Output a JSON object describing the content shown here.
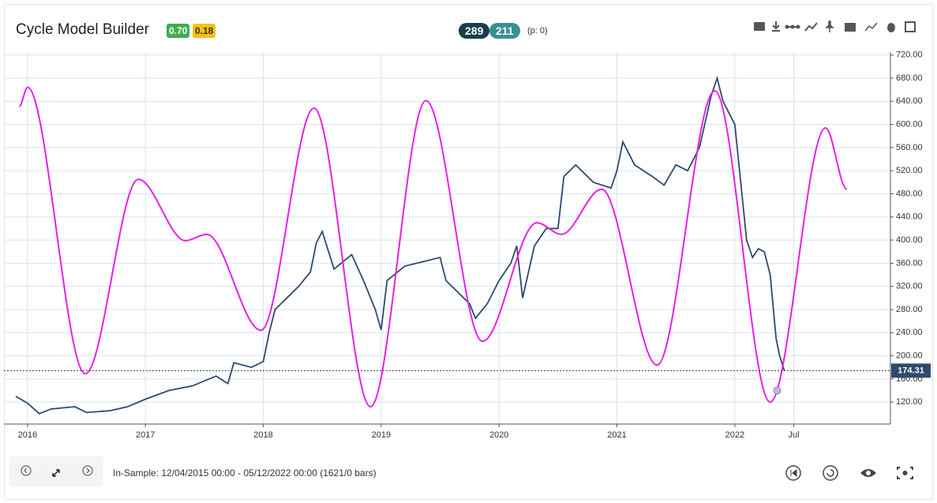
{
  "header": {
    "title": "Cycle Model Builder",
    "badge_green": "0.70",
    "badge_yellow": "0.18",
    "count_dark": "289",
    "count_teal": "211",
    "p_label": "(p: 0)"
  },
  "footer": {
    "range": "In-Sample: 12/04/2015 00:00 - 05/12/2022 00:00 (1621/0 bars)"
  },
  "chart_data": {
    "type": "line",
    "xlim": [
      2015.8,
      2023.32
    ],
    "xticks": [
      2016,
      2017,
      2018,
      2019,
      2020,
      2021,
      2022,
      {
        "value": 2022.5,
        "label": "Jul"
      }
    ],
    "ylim": [
      82,
      725
    ],
    "yticks": [
      {
        "value": 120,
        "label": "120.00"
      },
      {
        "value": 160,
        "label": "160.00"
      },
      {
        "value": 200,
        "label": "200.00"
      },
      {
        "value": 240,
        "label": "240.00"
      },
      {
        "value": 280,
        "label": "280.00"
      },
      {
        "value": 320,
        "label": "320.00"
      },
      {
        "value": 360,
        "label": "360.00"
      },
      {
        "value": 400,
        "label": "400.00"
      },
      {
        "value": 440,
        "label": "440.00"
      },
      {
        "value": 480,
        "label": "480.00"
      },
      {
        "value": 520,
        "label": "520.00"
      },
      {
        "value": 560,
        "label": "560.00"
      },
      {
        "value": 600,
        "label": "600.00"
      },
      {
        "value": 640,
        "label": "640.00"
      },
      {
        "value": 680,
        "label": "680.00"
      },
      {
        "value": 720,
        "label": "720.00"
      }
    ],
    "grid": true,
    "series": [
      {
        "color": "#2d4a6e",
        "smooth": false,
        "x": [
          2015.9,
          2016.0,
          2016.1,
          2016.2,
          2016.4,
          2016.5,
          2016.7,
          2016.85,
          2017.0,
          2017.2,
          2017.4,
          2017.6,
          2017.7,
          2017.75,
          2017.9,
          2018.0,
          2018.05,
          2018.1,
          2018.2,
          2018.3,
          2018.4,
          2018.45,
          2018.5,
          2018.6,
          2018.75,
          2018.85,
          2018.95,
          2019.0,
          2019.05,
          2019.2,
          2019.4,
          2019.5,
          2019.55,
          2019.65,
          2019.75,
          2019.8,
          2019.9,
          2020.0,
          2020.1,
          2020.15,
          2020.2,
          2020.3,
          2020.4,
          2020.5,
          2020.55,
          2020.65,
          2020.8,
          2020.95,
          2021.0,
          2021.05,
          2021.15,
          2021.3,
          2021.4,
          2021.5,
          2021.6,
          2021.7,
          2021.8,
          2021.85,
          2021.9,
          2022.0,
          2022.05,
          2022.1,
          2022.15,
          2022.2,
          2022.25,
          2022.3,
          2022.35,
          2022.38,
          2022.42
        ],
        "values": [
          130,
          118,
          100,
          108,
          112,
          102,
          105,
          112,
          125,
          140,
          148,
          165,
          152,
          188,
          180,
          190,
          240,
          280,
          300,
          320,
          345,
          395,
          415,
          350,
          375,
          330,
          280,
          245,
          330,
          355,
          365,
          370,
          330,
          310,
          290,
          265,
          290,
          330,
          360,
          390,
          300,
          390,
          420,
          420,
          510,
          530,
          500,
          490,
          520,
          570,
          530,
          510,
          495,
          530,
          520,
          560,
          650,
          680,
          640,
          600,
          500,
          400,
          370,
          385,
          380,
          340,
          230,
          200,
          174.31
        ]
      },
      {
        "color": "#e81ee8",
        "smooth": true,
        "x": [
          2015.93,
          2016.0,
          2016.49,
          2016.94,
          2017.34,
          2017.52,
          2017.98,
          2018.43,
          2018.91,
          2019.38,
          2019.86,
          2020.32,
          2020.53,
          2020.87,
          2021.34,
          2021.83,
          2022.3,
          2022.77,
          2022.95
        ],
        "values": [
          631,
          664,
          169,
          505,
          399,
          410,
          244,
          628,
          112,
          641,
          225,
          430,
          410,
          488,
          184,
          658,
          120,
          594,
          488
        ]
      }
    ],
    "last_price": {
      "value": 174.31,
      "label": "174.31"
    },
    "marker": {
      "x": 2022.36,
      "value": 140
    }
  }
}
